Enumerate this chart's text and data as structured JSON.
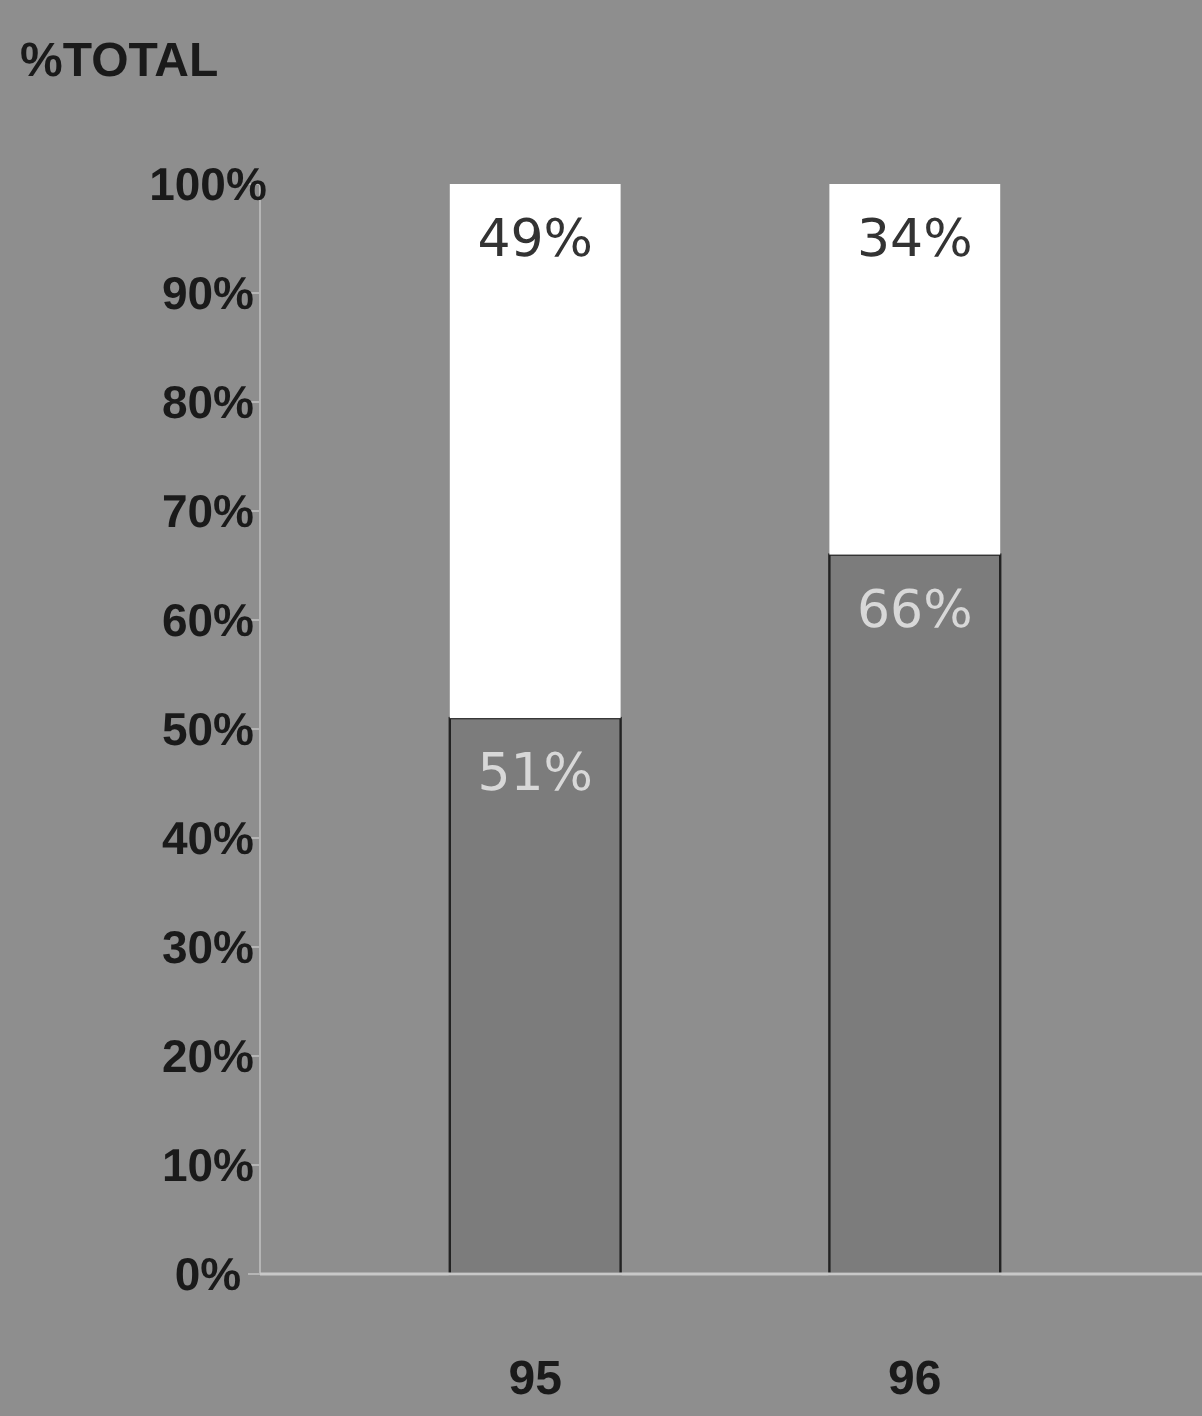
{
  "chart_data": {
    "type": "bar",
    "stacked": true,
    "ylabel": "%TOTAL",
    "categories": [
      "95",
      "96"
    ],
    "series": [
      {
        "color": "#7c7c7c",
        "values": [
          51,
          66
        ],
        "value_labels": [
          "51%",
          "66%"
        ]
      },
      {
        "color": "#ffffff",
        "values": [
          49,
          34
        ],
        "value_labels": [
          "49%",
          "34%"
        ]
      }
    ],
    "ylim": [
      0,
      100
    ],
    "yticks": [
      {
        "value": 0,
        "label": "0%"
      },
      {
        "value": 10,
        "label": "10%"
      },
      {
        "value": 20,
        "label": "20%"
      },
      {
        "value": 30,
        "label": "30%"
      },
      {
        "value": 40,
        "label": "40%"
      },
      {
        "value": 50,
        "label": "50%"
      },
      {
        "value": 60,
        "label": "60%"
      },
      {
        "value": 70,
        "label": "70%"
      },
      {
        "value": 80,
        "label": "80%"
      },
      {
        "value": 90,
        "label": "90%"
      },
      {
        "value": 100,
        "label": "100%"
      }
    ],
    "grid": false
  }
}
